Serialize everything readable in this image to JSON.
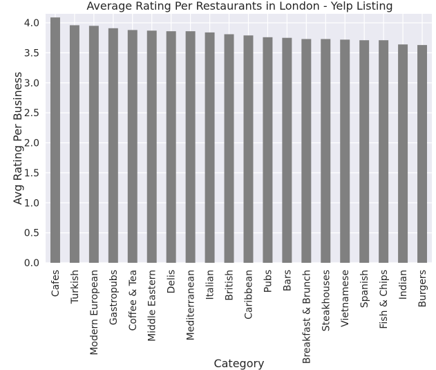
{
  "chart_data": {
    "type": "bar",
    "title": "Average Rating Per Restaurants in London - Yelp Listing",
    "xlabel": "Category",
    "ylabel": "Avg Rating Per Business",
    "categories": [
      "Cafes",
      "Turkish",
      "Modern European",
      "Gastropubs",
      "Coffee & Tea",
      "Middle Eastern",
      "Delis",
      "Mediterranean",
      "Italian",
      "British",
      "Caribbean",
      "Pubs",
      "Bars",
      "Breakfast & Brunch",
      "Steakhouses",
      "Vietnamese",
      "Spanish",
      "Fish & Chips",
      "Indian",
      "Burgers"
    ],
    "values": [
      4.09,
      3.96,
      3.95,
      3.91,
      3.88,
      3.87,
      3.86,
      3.86,
      3.84,
      3.81,
      3.79,
      3.76,
      3.75,
      3.73,
      3.73,
      3.72,
      3.71,
      3.71,
      3.64,
      3.63
    ],
    "ylim": [
      0,
      4.15
    ],
    "yticks": [
      0.0,
      0.5,
      1.0,
      1.5,
      2.0,
      2.5,
      3.0,
      3.5,
      4.0
    ],
    "grid": true,
    "background_color": "#eaeaf2",
    "bar_color": "#808080",
    "grid_color": "#ffffff"
  }
}
